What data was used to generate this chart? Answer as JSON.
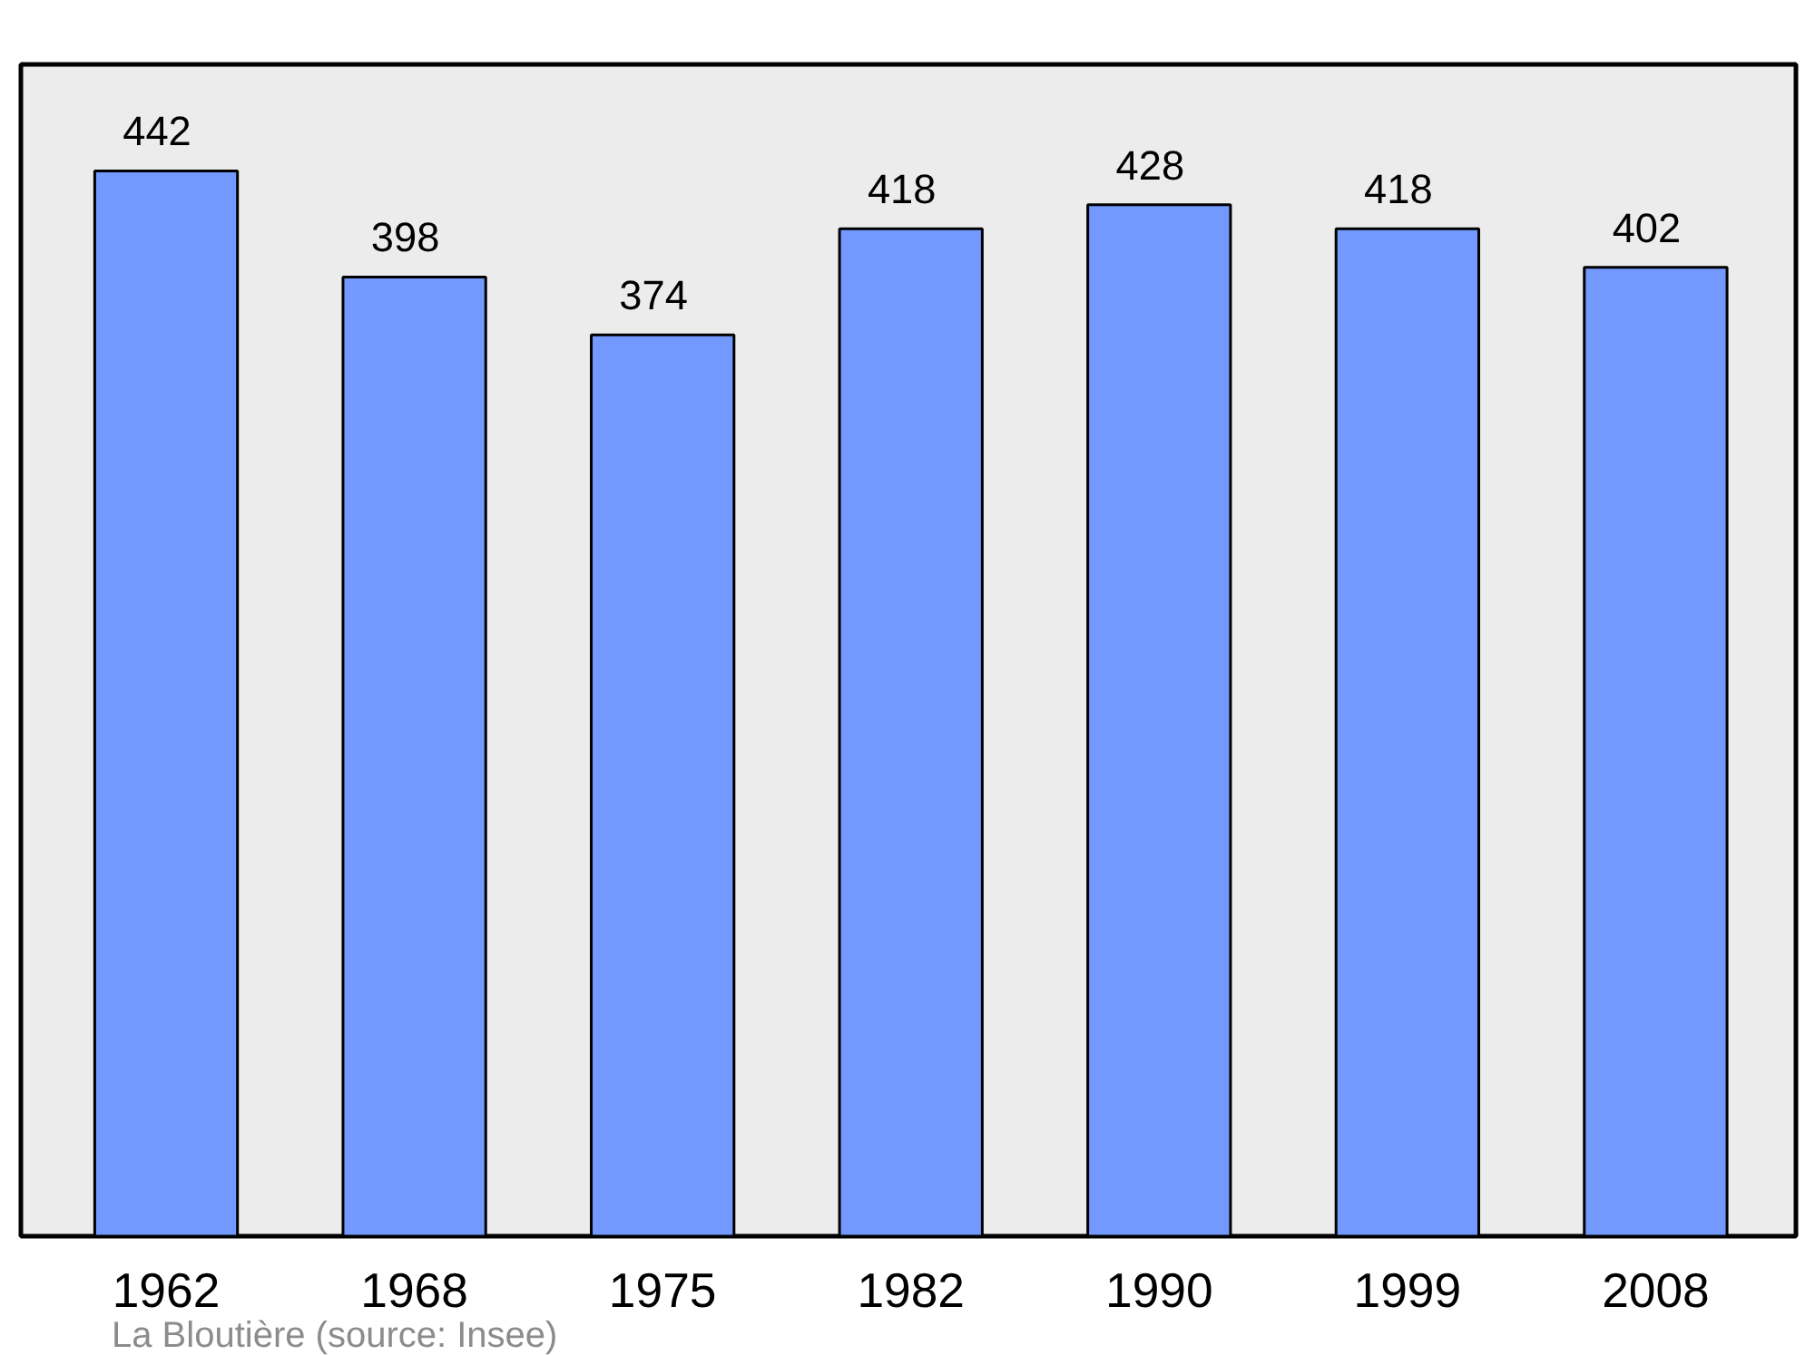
{
  "chart_data": {
    "type": "bar",
    "categories": [
      "1962",
      "1968",
      "1975",
      "1982",
      "1990",
      "1999",
      "2008"
    ],
    "values": [
      442,
      398,
      374,
      418,
      428,
      418,
      402
    ],
    "color": "#7399ff",
    "data_labels": true,
    "grid": false,
    "annotations": [
      "La Bloutière",
      "(source: Insee)"
    ]
  }
}
